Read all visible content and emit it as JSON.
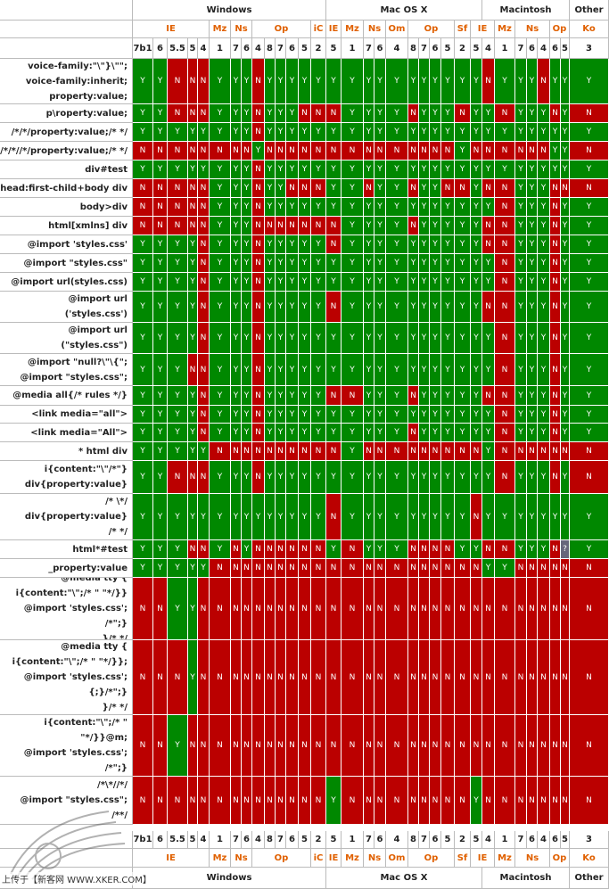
{
  "os_groups": [
    [
      "",
      0
    ],
    [
      "Windows",
      14
    ],
    [
      "Mac OS X",
      11
    ],
    [
      "Macintosh",
      7
    ],
    [
      "Other",
      1
    ]
  ],
  "browser_groups": [
    [
      "IE",
      5
    ],
    [
      "Mz",
      1
    ],
    [
      "Ns",
      2
    ],
    [
      "Op",
      5
    ],
    [
      "iC",
      1
    ],
    [
      "IE",
      1
    ],
    [
      "Mz",
      1
    ],
    [
      "Ns",
      2
    ],
    [
      "Om",
      1
    ],
    [
      "Op",
      4
    ],
    [
      "Sf",
      1
    ],
    [
      "IE",
      2
    ],
    [
      "Mz",
      1
    ],
    [
      "Ns",
      3
    ],
    [
      "Op",
      2
    ],
    [
      "Ko",
      1
    ]
  ],
  "versions": [
    "7b1",
    "6",
    "5.5",
    "5",
    "4",
    "1",
    "7",
    "6",
    "4",
    "8",
    "7",
    "6",
    "5",
    "2",
    "5",
    "1",
    "7",
    "6",
    "4",
    "8",
    "7",
    "6",
    "5",
    "2",
    "5",
    "4",
    "1",
    "7",
    "6",
    "4",
    "6",
    "5",
    "3"
  ],
  "rows": [
    {
      "hack": "voice-family:\"\\\"}\\\"\";\nvoice-family:inherit;\nproperty:value;",
      "r": "YYNNNYYYNYYYYYYYYYYYYYYYYNYYYNYYY"
    },
    {
      "hack": "p\\roperty:value;",
      "r": "YYNNNYYYNYYYNNNYYYYNYYYNYYNYYYNYN"
    },
    {
      "hack": "/*/*/property:value;/* */",
      "r": "YYYYYYYYNYYYYYYYYYYYYYYYYYYYYYYYY"
    },
    {
      "hack": "/*/*//*/property:value;/* */",
      "r": "NNNNNNNNYNNNNNNNNNNNNNNYNNNNNNYYN"
    },
    {
      "hack": "div#test",
      "r": "YYYYYYYYNYYYYYYYYYYYYYYYYYYYYYYYY"
    },
    {
      "hack": "head:first-child+body div",
      "r": "NNNNNYYYNYYNNNYYNYYNYYNNYNNYYYNNN"
    },
    {
      "hack": "body>div",
      "r": "NNNNNYYYNYYYYYYYYYYYYYYYYYNYYYNYY"
    },
    {
      "hack": "html[xmlns] div",
      "r": "NNNNNYYYNNNNNNNYYYYNYYYYYNNYYYNYY"
    },
    {
      "hack": "@import 'styles.css'",
      "r": "YYYYNYYYNYYYYYNYYYYYYYYYYNNYYYNYY"
    },
    {
      "hack": "@import \"styles.css\"",
      "r": "YYYYNYYYNYYYYYYYYYYYYYYYYYNYYYNYY"
    },
    {
      "hack": "@import url(styles.css)",
      "r": "YYYYNYYYNYYYYYYYYYYYYYYYYYNYYYNYY"
    },
    {
      "hack": "@import url\n('styles.css')",
      "r": "YYYYNYYYNYYYYYNYYYYYYYYYYNNYYYNYY"
    },
    {
      "hack": "@import url\n(\"styles.css\")",
      "r": "YYYYNYYYNYYYYYYYYYYYYYYYYYNYYYNYY"
    },
    {
      "hack": "@import \"null?\\\"\\{\";\n@import \"styles.css\";",
      "r": "YYYNNYYYNYYYYYYYYYYYYYYYYYNYYYNYY"
    },
    {
      "hack": "@media all{/* rules */}",
      "r": "YYYYNYYYNYYYYYNNYYYNYYYYYNNYYYNYY"
    },
    {
      "hack": "<link media=\"all\">",
      "r": "YYYYNYYYNYYYYYYYYYYYYYYYYYNYYYNYY"
    },
    {
      "hack": "<link media=\"All\">",
      "r": "YYYYNYYYNYYYYYYYYYYNYYYYYYNYYYNYY"
    },
    {
      "hack": "* html div",
      "r": "YYYYYNNNNNNNNNNYNNNNNNNNNYNNNNNNN"
    },
    {
      "hack": "i{content:\"\\\"/*\"}\ndiv{property:value}",
      "r": "YYNNNYYYNYYYYYYYYYYYYYYYYYNYYYNYN"
    },
    {
      "hack": "/* \\*/\ndiv{property:value}\n/* */",
      "r": "YYYYYYYYYYYYYYNYYYYYYYYYNYYYYYYYY"
    },
    {
      "hack": "html*#test",
      "r": "YYYNNYNYNNNNNNYNYYYNNNNYYNNYYYN?Y"
    },
    {
      "hack": "_property:value",
      "r": "YYYYYNNNNNNNNNNNNNNNNNNNNYYNNNNNN"
    },
    {
      "hack": "@media tty {\ni{content:\"\\\";/* \" \"*/}}\n@import 'styles.css'; /*\";}\n}/* */",
      "r": "NNYYNNNNNNNNNNNNNNNNNNNNNNNNNNNNN"
    },
    {
      "hack": "@media tty {\ni{content:\"\\\";/* \" \"*/}};\n@import 'styles.css';\n{;}/*\";}\n}/* */",
      "r": "NNNYNNNNNNNNNNNNNNNNNNNNNNNNNNNNN"
    },
    {
      "hack": "@media tty {\ni{content:\"\\\";/* \" \"*/}}@m;\n@import 'styles.css'; /*\";}\n}/* */",
      "r": "NNYNNNNNNNNNNNNNNNNNNNNNNNNNNNNNN"
    },
    {
      "hack": "/*\\*//*/\n@import \"styles.css\";\n/**/",
      "r": "NNNNNNNNNNNNNNYNNNNNNNNNYNNNNNNNN"
    }
  ],
  "watermark": "上传于【新客网 WWW.XKER.COM】"
}
